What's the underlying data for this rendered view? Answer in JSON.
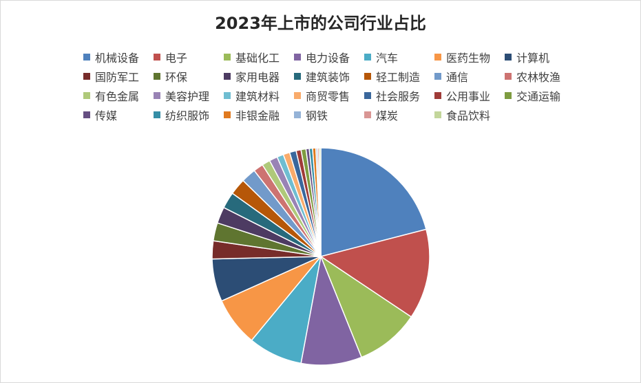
{
  "chart_data": {
    "type": "pie",
    "title": "2023年上市的公司行业占比",
    "legend_position": "top",
    "slices": [
      {
        "label": "机械设备",
        "value": 86,
        "color": "#4f81bd"
      },
      {
        "label": "电子",
        "value": 55,
        "color": "#c0504d"
      },
      {
        "label": "基础化工",
        "value": 39,
        "color": "#9bbb59"
      },
      {
        "label": "电力设备",
        "value": 37,
        "color": "#8064a2"
      },
      {
        "label": "汽车",
        "value": 33,
        "color": "#4bacc6"
      },
      {
        "label": "医药生物",
        "value": 30,
        "color": "#f79646"
      },
      {
        "label": "计算机",
        "value": 26,
        "color": "#2c4d75"
      },
      {
        "label": "国防军工",
        "value": 11,
        "color": "#772c2a"
      },
      {
        "label": "环保",
        "value": 11,
        "color": "#5f7530"
      },
      {
        "label": "家用电器",
        "value": 10,
        "color": "#4d3b62"
      },
      {
        "label": "建筑装饰",
        "value": 10,
        "color": "#276a7c"
      },
      {
        "label": "轻工制造",
        "value": 10,
        "color": "#b65708"
      },
      {
        "label": "通信",
        "value": 9,
        "color": "#729aca"
      },
      {
        "label": "农林牧渔",
        "value": 6,
        "color": "#cd7371"
      },
      {
        "label": "有色金属",
        "value": 5,
        "color": "#afc97a"
      },
      {
        "label": "美容护理",
        "value": 5,
        "color": "#9983b5"
      },
      {
        "label": "建筑材料",
        "value": 4,
        "color": "#6fbdd1"
      },
      {
        "label": "商贸零售",
        "value": 4,
        "color": "#f9ab6b"
      },
      {
        "label": "社会服务",
        "value": 4,
        "color": "#3a679c"
      },
      {
        "label": "公用事业",
        "value": 3,
        "color": "#9f3b38"
      },
      {
        "label": "交通运输",
        "value": 3,
        "color": "#7e9c40"
      },
      {
        "label": "传媒",
        "value": 2,
        "color": "#664f82"
      },
      {
        "label": "纺织服饰",
        "value": 2,
        "color": "#358ea6"
      },
      {
        "label": "非银金融",
        "value": 2,
        "color": "#e07a1f"
      },
      {
        "label": "钢铁",
        "value": 1,
        "color": "#95b3d7"
      },
      {
        "label": "煤炭",
        "value": 1,
        "color": "#d99694"
      },
      {
        "label": "食品饮料",
        "value": 1,
        "color": "#c3d69b"
      }
    ]
  }
}
